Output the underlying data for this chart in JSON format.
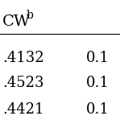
{
  "col1_header": "CW",
  "col1_superscript": "b",
  "rows": [
    {
      "col1": ".4132",
      "col2": "0.1"
    },
    {
      "col1": ".4523",
      "col2": "0.1"
    },
    {
      "col1": ".4421",
      "col2": "0.1"
    }
  ],
  "background_color": "#ffffff",
  "text_color": "#000000",
  "font_size": 13,
  "header_font_size": 14,
  "fig_width": 1.49,
  "fig_height": 1.49,
  "dpi": 100
}
